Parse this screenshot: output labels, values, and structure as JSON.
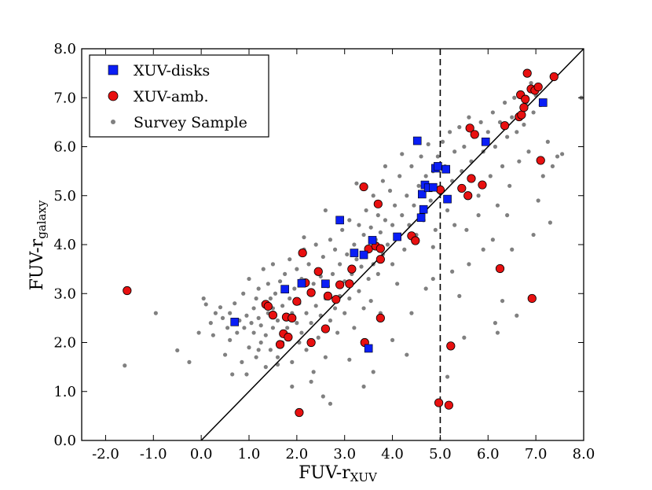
{
  "chart_data": {
    "type": "scatter",
    "xlabel": "FUV-r",
    "xlabel_sub": "XUV",
    "ylabel": "FUV-r",
    "ylabel_sub": "galaxy",
    "xlim": [
      -2.5,
      8.0
    ],
    "ylim": [
      0.0,
      8.0
    ],
    "xticks": [
      -2.0,
      -1.0,
      0.0,
      1.0,
      2.0,
      3.0,
      4.0,
      5.0,
      6.0,
      7.0,
      8.0
    ],
    "xtick_labels": [
      "-2.0",
      "-1.0",
      "0.0",
      "1.0",
      "2.0",
      "3.0",
      "4.0",
      "5.0",
      "6.0",
      "7.0",
      "8.0"
    ],
    "yticks": [
      0.0,
      1.0,
      2.0,
      3.0,
      4.0,
      5.0,
      6.0,
      7.0,
      8.0
    ],
    "ytick_labels": [
      "0.0",
      "1.0",
      "2.0",
      "3.0",
      "4.0",
      "5.0",
      "6.0",
      "7.0",
      "8.0"
    ],
    "reference_line": {
      "label": "one-to-one",
      "x": [
        0.0,
        8.0
      ],
      "y": [
        0.0,
        8.0
      ]
    },
    "vertical_line": {
      "x": 5.0,
      "style": "dashed"
    },
    "legend_position": "top-left",
    "colors": {
      "xuv_disks": "#0a1ef5",
      "xuv_amb": "#e81010",
      "survey": "#808080"
    },
    "series": [
      {
        "name": "XUV-disks",
        "marker": "square",
        "points": [
          [
            0.7,
            2.42
          ],
          [
            1.75,
            3.09
          ],
          [
            2.1,
            3.21
          ],
          [
            2.6,
            3.2
          ],
          [
            2.9,
            4.5
          ],
          [
            3.2,
            3.83
          ],
          [
            3.4,
            3.79
          ],
          [
            3.5,
            1.88
          ],
          [
            3.58,
            4.09
          ],
          [
            4.1,
            4.16
          ],
          [
            4.52,
            6.12
          ],
          [
            4.6,
            4.55
          ],
          [
            4.62,
            5.03
          ],
          [
            4.65,
            4.72
          ],
          [
            4.68,
            5.22
          ],
          [
            4.75,
            5.16
          ],
          [
            4.85,
            5.17
          ],
          [
            4.9,
            5.56
          ],
          [
            4.95,
            5.6
          ],
          [
            5.12,
            5.54
          ],
          [
            5.15,
            4.93
          ],
          [
            5.95,
            6.1
          ],
          [
            7.15,
            6.9
          ]
        ]
      },
      {
        "name": "XUV-amb.",
        "marker": "circle",
        "points": [
          [
            -1.55,
            3.06
          ],
          [
            1.35,
            2.78
          ],
          [
            1.4,
            2.74
          ],
          [
            1.5,
            2.56
          ],
          [
            1.65,
            1.96
          ],
          [
            1.72,
            2.18
          ],
          [
            1.78,
            2.52
          ],
          [
            1.82,
            2.11
          ],
          [
            1.9,
            2.5
          ],
          [
            2.0,
            2.84
          ],
          [
            2.05,
            0.57
          ],
          [
            2.12,
            3.83
          ],
          [
            2.18,
            3.22
          ],
          [
            2.3,
            3.02
          ],
          [
            2.3,
            2.0
          ],
          [
            2.45,
            3.45
          ],
          [
            2.6,
            2.28
          ],
          [
            2.65,
            2.95
          ],
          [
            2.82,
            2.88
          ],
          [
            2.9,
            3.18
          ],
          [
            3.1,
            3.2
          ],
          [
            3.15,
            3.5
          ],
          [
            3.4,
            5.18
          ],
          [
            3.42,
            2.0
          ],
          [
            3.5,
            3.91
          ],
          [
            3.65,
            3.97
          ],
          [
            3.7,
            4.83
          ],
          [
            3.75,
            3.92
          ],
          [
            3.75,
            3.7
          ],
          [
            3.75,
            2.5
          ],
          [
            4.4,
            4.18
          ],
          [
            4.48,
            4.08
          ],
          [
            4.97,
            0.77
          ],
          [
            5.0,
            5.12
          ],
          [
            5.18,
            0.72
          ],
          [
            5.22,
            1.93
          ],
          [
            5.45,
            5.15
          ],
          [
            5.58,
            5.0
          ],
          [
            5.62,
            6.38
          ],
          [
            5.65,
            5.35
          ],
          [
            5.72,
            6.25
          ],
          [
            5.88,
            5.22
          ],
          [
            6.25,
            3.51
          ],
          [
            6.35,
            6.43
          ],
          [
            6.65,
            6.61
          ],
          [
            6.68,
            7.06
          ],
          [
            6.7,
            6.65
          ],
          [
            6.75,
            6.8
          ],
          [
            6.78,
            6.97
          ],
          [
            6.82,
            7.5
          ],
          [
            6.9,
            7.18
          ],
          [
            6.92,
            2.9
          ],
          [
            6.98,
            7.15
          ],
          [
            7.05,
            7.22
          ],
          [
            7.1,
            5.72
          ],
          [
            7.38,
            7.43
          ]
        ]
      },
      {
        "name": "Survey Sample",
        "marker": "dot",
        "points": [
          [
            -1.6,
            1.53
          ],
          [
            -0.95,
            2.6
          ],
          [
            -0.5,
            1.84
          ],
          [
            -0.25,
            1.6
          ],
          [
            -0.05,
            2.2
          ],
          [
            0.05,
            2.9
          ],
          [
            0.1,
            2.78
          ],
          [
            0.2,
            2.4
          ],
          [
            0.25,
            2.15
          ],
          [
            0.3,
            2.6
          ],
          [
            0.4,
            2.72
          ],
          [
            0.45,
            2.5
          ],
          [
            0.5,
            1.75
          ],
          [
            0.55,
            2.3
          ],
          [
            0.6,
            2.05
          ],
          [
            0.6,
            2.6
          ],
          [
            0.65,
            1.35
          ],
          [
            0.7,
            2.8
          ],
          [
            0.75,
            2.2
          ],
          [
            0.8,
            2.45
          ],
          [
            0.85,
            1.6
          ],
          [
            0.88,
            3.0
          ],
          [
            0.9,
            2.3
          ],
          [
            0.95,
            2.55
          ],
          [
            1.0,
            1.9
          ],
          [
            1.0,
            3.3
          ],
          [
            1.05,
            2.4
          ],
          [
            1.1,
            2.7
          ],
          [
            1.1,
            2.2
          ],
          [
            1.15,
            2.9
          ],
          [
            1.15,
            1.7
          ],
          [
            1.2,
            2.5
          ],
          [
            1.2,
            3.1
          ],
          [
            1.25,
            2.35
          ],
          [
            1.25,
            2.0
          ],
          [
            1.3,
            2.8
          ],
          [
            1.3,
            3.5
          ],
          [
            1.35,
            2.15
          ],
          [
            1.35,
            1.5
          ],
          [
            1.4,
            2.6
          ],
          [
            1.4,
            3.2
          ],
          [
            1.45,
            2.9
          ],
          [
            1.45,
            1.85
          ],
          [
            1.5,
            2.3
          ],
          [
            1.5,
            2.7
          ],
          [
            1.5,
            3.6
          ],
          [
            1.55,
            3.0
          ],
          [
            1.6,
            2.45
          ],
          [
            1.6,
            1.7
          ],
          [
            1.65,
            3.25
          ],
          [
            1.7,
            2.75
          ],
          [
            1.7,
            2.0
          ],
          [
            1.75,
            3.4
          ],
          [
            1.8,
            2.3
          ],
          [
            1.85,
            2.9
          ],
          [
            1.85,
            3.7
          ],
          [
            1.9,
            2.6
          ],
          [
            1.9,
            1.6
          ],
          [
            1.95,
            3.1
          ],
          [
            2.0,
            2.4
          ],
          [
            2.0,
            3.5
          ],
          [
            2.05,
            2.0
          ],
          [
            2.05,
            2.8
          ],
          [
            2.1,
            3.3
          ],
          [
            2.1,
            2.2
          ],
          [
            2.15,
            3.9
          ],
          [
            2.2,
            2.6
          ],
          [
            2.2,
            1.85
          ],
          [
            2.25,
            3.0
          ],
          [
            2.25,
            3.6
          ],
          [
            2.3,
            2.4
          ],
          [
            2.35,
            3.2
          ],
          [
            2.35,
            1.4
          ],
          [
            2.4,
            2.75
          ],
          [
            2.4,
            4.0
          ],
          [
            2.45,
            2.1
          ],
          [
            2.5,
            3.35
          ],
          [
            2.5,
            2.55
          ],
          [
            2.55,
            3.75
          ],
          [
            2.6,
            2.9
          ],
          [
            2.6,
            1.7
          ],
          [
            2.65,
            3.15
          ],
          [
            2.7,
            2.45
          ],
          [
            2.7,
            4.1
          ],
          [
            2.75,
            3.4
          ],
          [
            2.8,
            2.7
          ],
          [
            2.8,
            3.9
          ],
          [
            2.85,
            2.2
          ],
          [
            2.9,
            3.6
          ],
          [
            2.9,
            2.95
          ],
          [
            2.95,
            4.3
          ],
          [
            3.0,
            3.25
          ],
          [
            3.0,
            2.6
          ],
          [
            3.05,
            3.8
          ],
          [
            3.1,
            4.5
          ],
          [
            3.1,
            2.9
          ],
          [
            3.15,
            3.4
          ],
          [
            3.2,
            4.0
          ],
          [
            3.2,
            2.3
          ],
          [
            3.25,
            3.7
          ],
          [
            3.3,
            4.4
          ],
          [
            3.3,
            3.05
          ],
          [
            3.35,
            3.55
          ],
          [
            3.4,
            4.2
          ],
          [
            3.4,
            2.7
          ],
          [
            3.45,
            4.7
          ],
          [
            3.5,
            3.9
          ],
          [
            3.5,
            3.3
          ],
          [
            3.55,
            4.35
          ],
          [
            3.6,
            5.0
          ],
          [
            3.6,
            3.6
          ],
          [
            3.65,
            4.1
          ],
          [
            3.7,
            4.6
          ],
          [
            3.7,
            3.4
          ],
          [
            3.75,
            4.25
          ],
          [
            3.8,
            5.3
          ],
          [
            3.8,
            3.8
          ],
          [
            3.85,
            4.5
          ],
          [
            3.9,
            4.0
          ],
          [
            3.95,
            5.1
          ],
          [
            4.0,
            4.4
          ],
          [
            4.0,
            3.6
          ],
          [
            4.05,
            4.8
          ],
          [
            4.1,
            4.2
          ],
          [
            4.15,
            5.4
          ],
          [
            4.2,
            4.6
          ],
          [
            4.25,
            3.9
          ],
          [
            4.3,
            5.0
          ],
          [
            4.35,
            4.4
          ],
          [
            4.4,
            5.6
          ],
          [
            4.45,
            4.8
          ],
          [
            4.5,
            4.2
          ],
          [
            4.55,
            5.2
          ],
          [
            4.6,
            5.8
          ],
          [
            4.65,
            4.5
          ],
          [
            4.7,
            5.4
          ],
          [
            4.75,
            6.05
          ],
          [
            4.8,
            4.9
          ],
          [
            4.85,
            5.5
          ],
          [
            4.9,
            4.3
          ],
          [
            4.95,
            5.8
          ],
          [
            5.0,
            5.05
          ],
          [
            5.05,
            6.1
          ],
          [
            5.1,
            5.6
          ],
          [
            5.15,
            4.7
          ],
          [
            5.2,
            6.3
          ],
          [
            5.25,
            5.3
          ],
          [
            5.3,
            5.9
          ],
          [
            5.4,
            6.4
          ],
          [
            5.45,
            5.5
          ],
          [
            5.5,
            6.0
          ],
          [
            5.55,
            4.3
          ],
          [
            5.6,
            6.6
          ],
          [
            5.65,
            5.7
          ],
          [
            5.7,
            6.2
          ],
          [
            5.8,
            5.0
          ],
          [
            5.85,
            6.5
          ],
          [
            5.9,
            5.9
          ],
          [
            6.0,
            6.3
          ],
          [
            6.05,
            5.4
          ],
          [
            6.1,
            6.7
          ],
          [
            6.15,
            6.0
          ],
          [
            6.2,
            4.8
          ],
          [
            6.25,
            6.5
          ],
          [
            6.3,
            5.6
          ],
          [
            6.35,
            6.9
          ],
          [
            6.4,
            6.2
          ],
          [
            6.45,
            5.2
          ],
          [
            6.5,
            6.6
          ],
          [
            6.55,
            7.0
          ],
          [
            6.6,
            6.3
          ],
          [
            6.65,
            5.7
          ],
          [
            6.7,
            7.1
          ],
          [
            6.75,
            6.45
          ],
          [
            6.8,
            6.9
          ],
          [
            6.85,
            5.9
          ],
          [
            6.9,
            7.3
          ],
          [
            6.95,
            6.7
          ],
          [
            7.0,
            7.05
          ],
          [
            7.1,
            6.85
          ],
          [
            7.15,
            5.4
          ],
          [
            7.25,
            6.1
          ],
          [
            7.35,
            5.6
          ],
          [
            7.45,
            5.8
          ],
          [
            7.55,
            5.85
          ],
          [
            7.95,
            7.0
          ],
          [
            5.8,
            4.6
          ],
          [
            6.1,
            4.1
          ],
          [
            6.3,
            2.85
          ],
          [
            6.6,
            2.55
          ],
          [
            6.15,
            2.4
          ],
          [
            5.25,
            3.45
          ],
          [
            5.5,
            2.1
          ],
          [
            5.15,
            1.3
          ],
          [
            4.85,
            3.3
          ],
          [
            4.7,
            3.1
          ],
          [
            4.4,
            2.6
          ],
          [
            4.3,
            1.75
          ],
          [
            4.0,
            2.05
          ],
          [
            3.75,
            2.6
          ],
          [
            3.6,
            1.4
          ],
          [
            3.4,
            1.1
          ],
          [
            3.1,
            1.65
          ],
          [
            2.7,
            0.75
          ],
          [
            2.3,
            1.2
          ],
          [
            1.9,
            1.1
          ],
          [
            1.6,
            1.55
          ],
          [
            2.55,
            0.9
          ],
          [
            5.9,
            3.9
          ],
          [
            6.5,
            3.9
          ],
          [
            7.3,
            4.45
          ],
          [
            7.05,
            4.9
          ],
          [
            6.95,
            4.2
          ],
          [
            5.4,
            2.95
          ],
          [
            5.3,
            4.4
          ],
          [
            5.6,
            3.6
          ],
          [
            6.4,
            4.6
          ],
          [
            6.2,
            2.2
          ],
          [
            1.2,
            1.85
          ],
          [
            0.95,
            1.35
          ],
          [
            2.15,
            4.15
          ],
          [
            2.6,
            4.7
          ],
          [
            3.25,
            5.25
          ],
          [
            3.85,
            5.6
          ],
          [
            4.2,
            5.85
          ],
          [
            4.1,
            3.2
          ],
          [
            3.55,
            2.85
          ],
          [
            4.85,
            3.95
          ]
        ]
      }
    ]
  }
}
